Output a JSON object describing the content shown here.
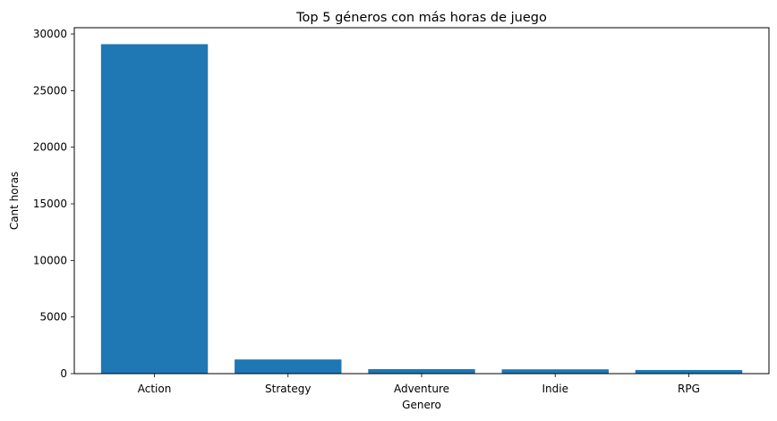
{
  "chart_data": {
    "type": "bar",
    "title": "Top 5 géneros con más horas de juego",
    "xlabel": "Genero",
    "ylabel": "Cant horas",
    "categories": [
      "Action",
      "Strategy",
      "Adventure",
      "Indie",
      "RPG"
    ],
    "values": [
      29100,
      1250,
      400,
      380,
      320
    ],
    "ylim": [
      0,
      30000
    ],
    "yticks": [
      0,
      5000,
      10000,
      15000,
      20000,
      25000,
      30000
    ],
    "grid": false,
    "bar_color": "#1f77b4"
  }
}
